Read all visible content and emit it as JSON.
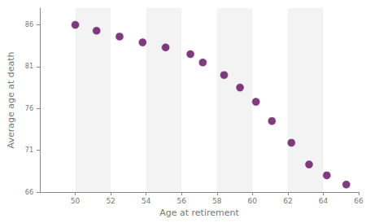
{
  "chart_data": {
    "type": "scatter",
    "x_label": "Age at retirement",
    "y_label": "Average age at death",
    "x": [
      50,
      51.2,
      52.5,
      53.8,
      55.1,
      56.5,
      57.2,
      58.4,
      59.3,
      60.2,
      61.1,
      62.2,
      63.2,
      64.2,
      65.3
    ],
    "values": [
      86,
      85.3,
      84.6,
      83.9,
      83.3,
      82.5,
      81.5,
      80.0,
      78.5,
      76.8,
      74.5,
      71.9,
      69.3,
      68.0,
      66.9
    ],
    "color": "#5e0b5e",
    "marker": "circle",
    "xlim": [
      48,
      66
    ],
    "xticks": [
      50,
      52,
      54,
      56,
      58,
      60,
      62,
      64,
      66
    ],
    "ylim": [
      66,
      88
    ],
    "yticks": [
      66,
      71,
      76,
      81,
      86
    ]
  }
}
